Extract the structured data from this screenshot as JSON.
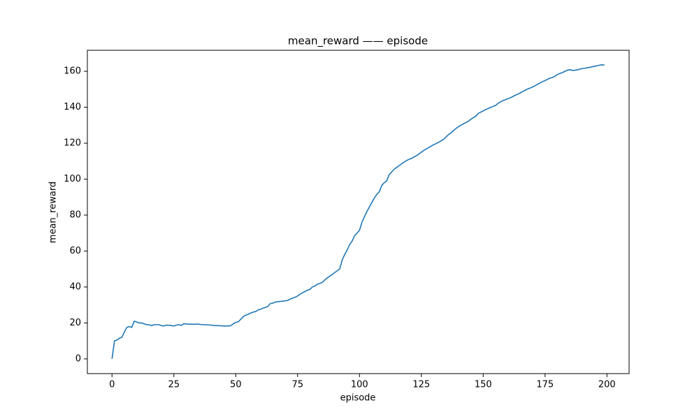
{
  "chart_data": {
    "type": "line",
    "title": "mean_reward —— episode",
    "xlabel": "episode",
    "ylabel": "mean_reward",
    "x": [
      0,
      1,
      2,
      3,
      4,
      5,
      6,
      7,
      8,
      9,
      10,
      11,
      12,
      13,
      14,
      15,
      16,
      17,
      18,
      19,
      20,
      21,
      22,
      23,
      24,
      25,
      26,
      27,
      28,
      29,
      30,
      31,
      32,
      33,
      34,
      35,
      36,
      37,
      38,
      39,
      40,
      41,
      42,
      43,
      44,
      45,
      46,
      47,
      48,
      49,
      50,
      51,
      52,
      53,
      54,
      55,
      56,
      57,
      58,
      59,
      60,
      61,
      62,
      63,
      64,
      65,
      66,
      67,
      68,
      69,
      70,
      71,
      72,
      73,
      74,
      75,
      76,
      77,
      78,
      79,
      80,
      81,
      82,
      83,
      84,
      85,
      86,
      87,
      88,
      89,
      90,
      91,
      92,
      93,
      94,
      95,
      96,
      97,
      98,
      99,
      100,
      101,
      102,
      103,
      104,
      105,
      106,
      107,
      108,
      109,
      110,
      111,
      112,
      113,
      114,
      115,
      116,
      117,
      118,
      119,
      120,
      121,
      122,
      123,
      124,
      125,
      126,
      127,
      128,
      129,
      130,
      131,
      132,
      133,
      134,
      135,
      136,
      137,
      138,
      139,
      140,
      141,
      142,
      143,
      144,
      145,
      146,
      147,
      148,
      149,
      150,
      151,
      152,
      153,
      154,
      155,
      156,
      157,
      158,
      159,
      160,
      161,
      162,
      163,
      164,
      165,
      166,
      167,
      168,
      169,
      170,
      171,
      172,
      173,
      174,
      175,
      176,
      177,
      178,
      179,
      180,
      181,
      182,
      183,
      184,
      185,
      186,
      187,
      188,
      189,
      190,
      191,
      192,
      193,
      194,
      195,
      196,
      197,
      198,
      199
    ],
    "series": [
      {
        "name": "mean_reward",
        "color": "#1f77b4",
        "values": [
          0,
          10,
          10.5,
          11.5,
          12,
          15,
          17.5,
          18,
          17.5,
          21,
          20.5,
          20,
          20,
          19.5,
          19,
          19,
          18.5,
          19,
          19,
          19,
          18.5,
          18.3,
          18.8,
          18.7,
          18.5,
          18.3,
          18.8,
          19,
          18.6,
          19.6,
          19.4,
          19.3,
          19.3,
          19.2,
          19.3,
          19.3,
          19.1,
          19,
          19,
          18.9,
          18.8,
          18.6,
          18.5,
          18.5,
          18.4,
          18.3,
          18.3,
          18.3,
          18.5,
          19.5,
          20.3,
          20.6,
          22,
          23.5,
          24.3,
          24.8,
          25.5,
          26,
          26.3,
          27.2,
          27.6,
          28.2,
          28.6,
          29.2,
          30.8,
          31,
          31.6,
          31.8,
          32,
          32.1,
          32.3,
          32.5,
          33.3,
          33.8,
          34.3,
          35,
          36,
          36.8,
          37.5,
          38.2,
          38.7,
          40,
          40.6,
          41.5,
          42,
          42.6,
          44,
          45,
          46,
          47,
          48,
          49,
          50,
          55,
          58,
          60.5,
          63.5,
          65.5,
          68.5,
          70,
          71.5,
          76,
          79,
          82,
          84.5,
          87,
          89.5,
          91.5,
          93,
          96.5,
          98,
          99,
          102.5,
          104,
          105.5,
          106.5,
          107.5,
          108.5,
          109.5,
          110.3,
          111,
          111.5,
          112.3,
          113,
          114,
          115,
          116,
          116.8,
          117.6,
          118.4,
          119.2,
          119.8,
          120.5,
          121.3,
          122.2,
          123.5,
          124.8,
          125.8,
          127,
          128.2,
          129.2,
          130,
          130.8,
          131.5,
          132.2,
          133.3,
          134.2,
          135,
          136.6,
          137.3,
          138,
          138.7,
          139.3,
          139.9,
          140.5,
          141,
          142.2,
          143,
          143.7,
          144.2,
          144.8,
          145.3,
          146,
          146.7,
          147.3,
          148,
          148.8,
          149.5,
          150.2,
          150.7,
          151.3,
          152,
          152.8,
          153.5,
          154.3,
          154.8,
          155.6,
          156.2,
          156.6,
          157.3,
          158.2,
          158.8,
          159.3,
          160,
          160.6,
          160.9,
          160.5,
          160.6,
          160.8,
          161.2,
          161.5,
          161.7,
          162,
          162.2,
          162.5,
          162.8,
          163.1,
          163.4,
          163.6,
          163.5
        ]
      }
    ],
    "xlim": [
      -9.95,
      208.95
    ],
    "xticks": [
      0,
      25,
      50,
      75,
      100,
      125,
      150,
      175,
      200
    ],
    "ylim": [
      -8.2,
      171.7
    ],
    "yticks": [
      0,
      20,
      40,
      60,
      80,
      100,
      120,
      140,
      160
    ]
  }
}
